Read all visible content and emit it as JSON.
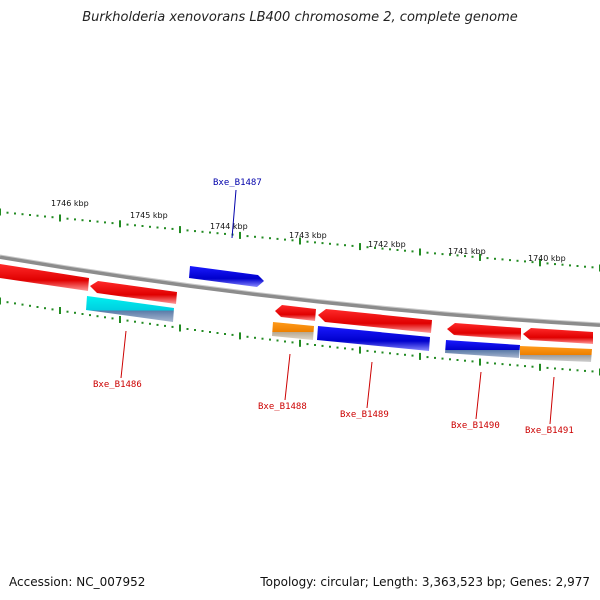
{
  "title": "Burkholderia xenovorans LB400 chromosome 2, complete genome",
  "footer": {
    "accession": "Accession: NC_007952",
    "summary": "Topology: circular; Length: 3,363,523 bp; Genes: 2,977"
  },
  "scale_labels": [
    "1746 kbp",
    "1745 kbp",
    "1744 kbp",
    "1743 kbp",
    "1742 kbp",
    "1741 kbp",
    "1740 kbp"
  ],
  "gene_labels": [
    {
      "id": "b1486",
      "text": "Bxe_B1486",
      "color": "#cc0000"
    },
    {
      "id": "b1487",
      "text": "Bxe_B1487",
      "color": "#0000aa"
    },
    {
      "id": "b1488",
      "text": "Bxe_B1488",
      "color": "#cc0000"
    },
    {
      "id": "b1489",
      "text": "Bxe_B1489",
      "color": "#cc0000"
    },
    {
      "id": "b1490",
      "text": "Bxe_B1490",
      "color": "#cc0000"
    },
    {
      "id": "b1491",
      "text": "Bxe_B1491",
      "color": "#cc0000"
    }
  ],
  "colors": {
    "forward_strand": "#0000ee",
    "reverse_strand": "#ee0000",
    "cds_cyan": "#00e5ee",
    "cds_orange": "#ff8c00",
    "tick_green": "#228b22",
    "backbone": "#8c8c8c"
  }
}
